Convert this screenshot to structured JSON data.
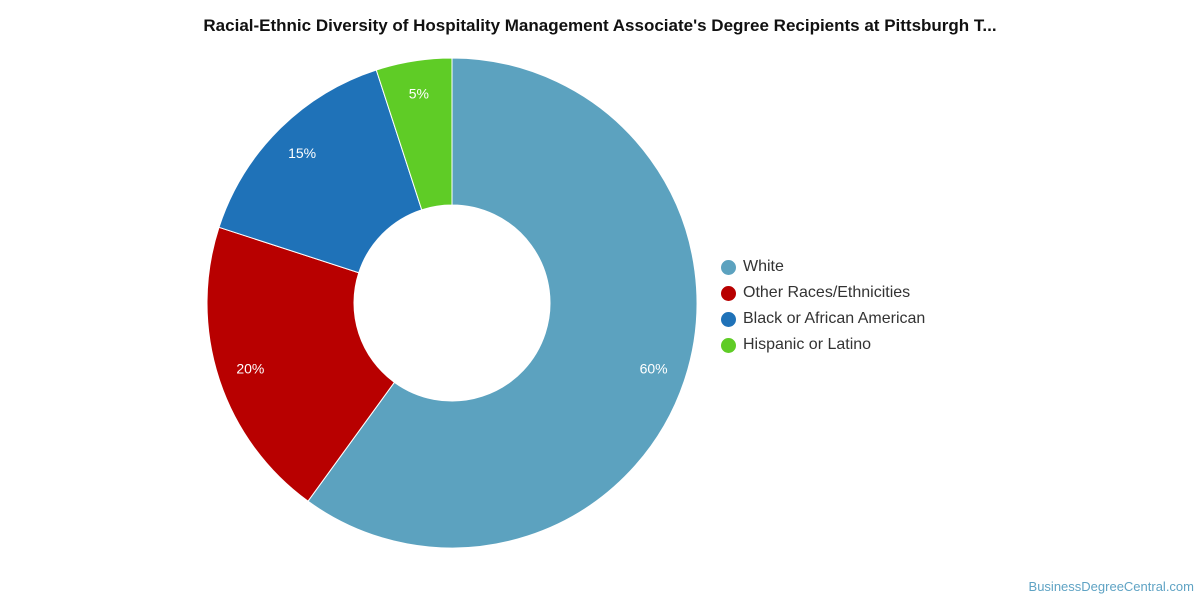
{
  "chart_data": {
    "type": "pie",
    "donut": true,
    "title": "Racial-Ethnic Diversity of Hospitality Management Associate's Degree Recipients at Pittsburgh T...",
    "categories": [
      "White",
      "Other Races/Ethnicities",
      "Black or African American",
      "Hispanic or Latino"
    ],
    "values": [
      60,
      20,
      15,
      5
    ],
    "labels": [
      "60%",
      "20%",
      "15%",
      "5%"
    ],
    "colors": [
      "#5ca2bf",
      "#b80000",
      "#1f72b8",
      "#5fcc26"
    ],
    "legend": "right"
  },
  "watermark": "BusinessDegreeCentral.com"
}
